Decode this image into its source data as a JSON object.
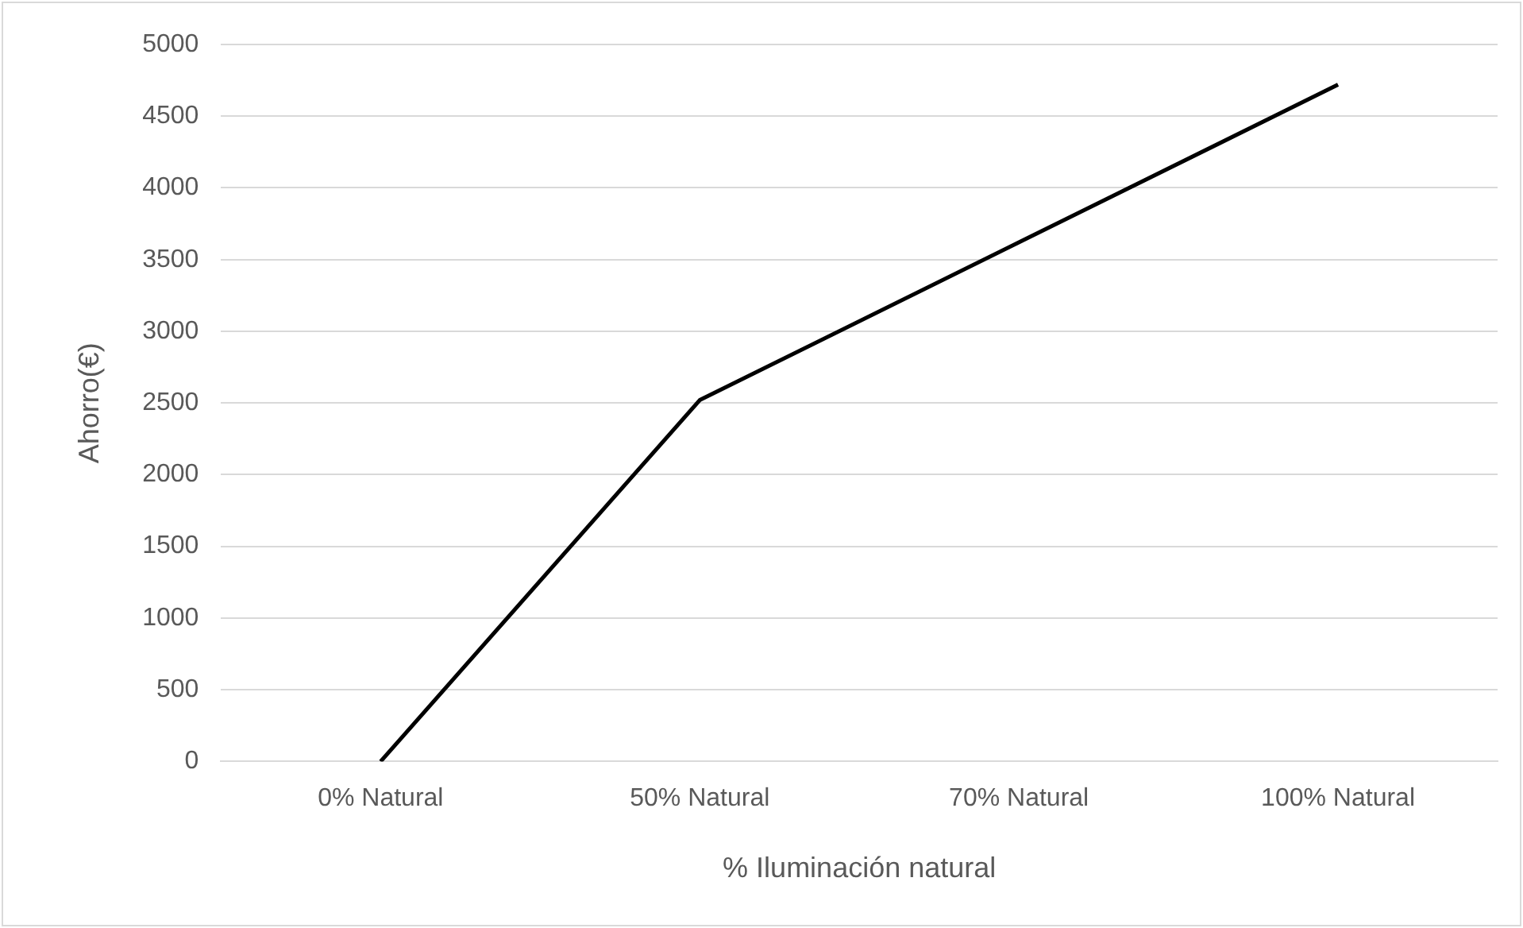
{
  "chart_data": {
    "type": "line",
    "xlabel": "% Iluminación natural",
    "ylabel": "Ahorro(€)",
    "categories": [
      "0% Natural",
      "50% Natural",
      "70% Natural",
      "100% Natural"
    ],
    "series": [
      {
        "color": "#000000",
        "values": [
          0,
          2520,
          3620,
          4720
        ]
      }
    ],
    "ylim": [
      0,
      5000
    ],
    "yticks": [
      0,
      500,
      1000,
      1500,
      2000,
      2500,
      3000,
      3500,
      4000,
      4500,
      5000
    ],
    "grid": "y",
    "legend": false,
    "marker": "none",
    "line_style": "solid"
  }
}
